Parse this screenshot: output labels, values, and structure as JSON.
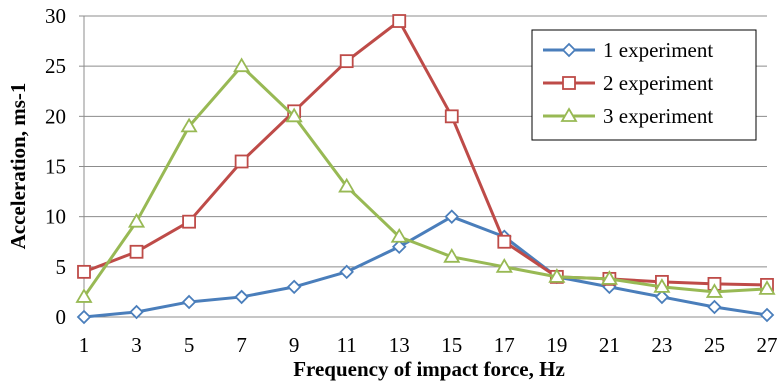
{
  "chart_data": {
    "type": "line",
    "xlabel": "Frequency of impact force, Hz",
    "ylabel": "Acceleration, ms-1",
    "x": [
      1,
      3,
      5,
      7,
      9,
      11,
      13,
      15,
      17,
      19,
      21,
      23,
      25,
      27
    ],
    "xticks": [
      "1",
      "3",
      "5",
      "7",
      "9",
      "11",
      "13",
      "15",
      "17",
      "19",
      "21",
      "23",
      "25",
      "27"
    ],
    "ylim": [
      0,
      30
    ],
    "yticks": [
      "0",
      "5",
      "10",
      "15",
      "20",
      "25",
      "30"
    ],
    "grid": "horizontal",
    "legend_position": "top-right",
    "series": [
      {
        "name": "1 experiment",
        "color": "#4a7ebb",
        "marker": "diamond",
        "values": [
          0,
          0.5,
          1.5,
          2,
          3,
          4.5,
          7,
          10,
          8,
          4,
          3,
          2,
          1,
          0.2
        ]
      },
      {
        "name": "2 experiment",
        "color": "#be4b48",
        "marker": "square",
        "values": [
          4.5,
          6.5,
          9.5,
          15.5,
          20.5,
          25.5,
          29.5,
          20,
          7.5,
          4,
          3.8,
          3.5,
          3.3,
          3.2
        ]
      },
      {
        "name": "3 experiment",
        "color": "#98b954",
        "marker": "triangle",
        "values": [
          2,
          9.5,
          19,
          25,
          20,
          13,
          8,
          6,
          5,
          4,
          3.8,
          3,
          2.5,
          2.8
        ]
      }
    ]
  }
}
